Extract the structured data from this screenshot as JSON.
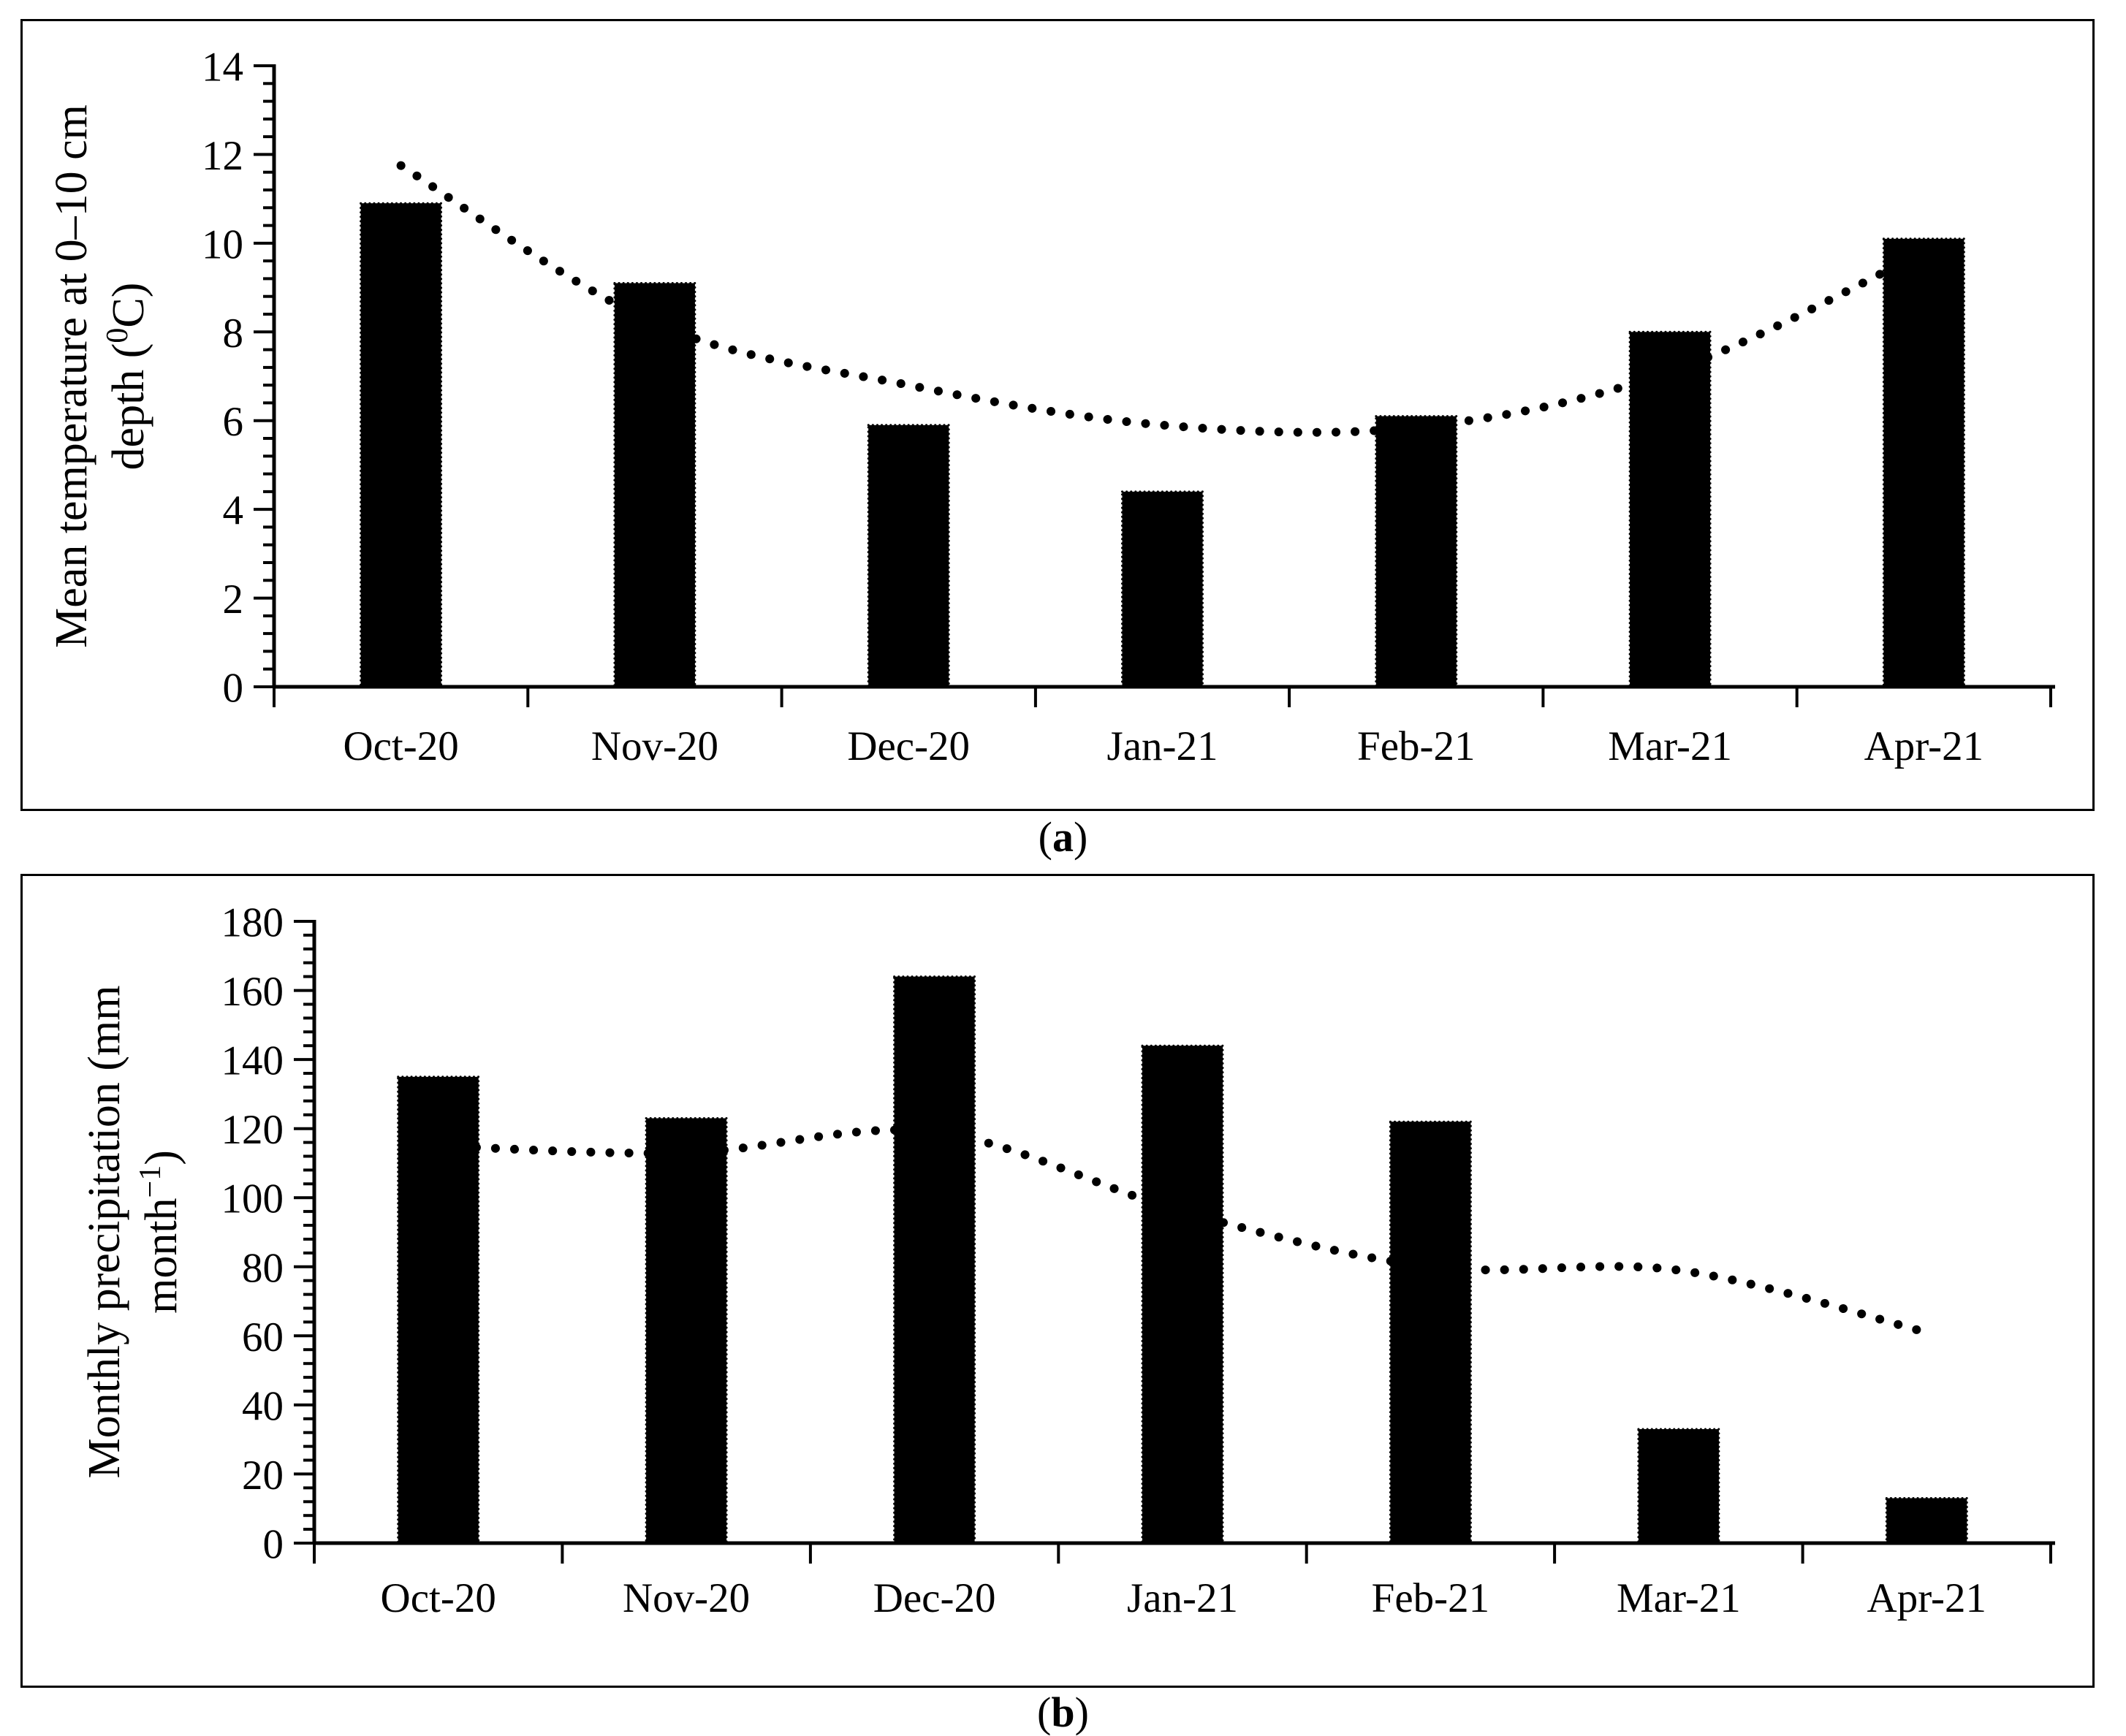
{
  "figure": {
    "background": "#ffffff",
    "ink_color": "#000000"
  },
  "chart_data": [
    {
      "panel": "a",
      "type": "bar",
      "subtype": "bar-with-dotted-line-overlay",
      "categories": [
        "Oct-20",
        "Nov-20",
        "Dec-20",
        "Jan-21",
        "Feb-21",
        "Mar-21",
        "Apr-21"
      ],
      "series": [
        {
          "name": "mean-soil-temperature-bars",
          "type": "bar",
          "values": [
            10.9,
            9.1,
            5.9,
            4.4,
            6.1,
            8.0,
            10.1
          ]
        },
        {
          "name": "dotted-trend-line",
          "type": "line",
          "style": "dotted",
          "values": [
            11.75,
            8.2,
            6.8,
            5.9,
            5.85,
            7.1,
            9.8
          ]
        }
      ],
      "title": "",
      "xlabel": "",
      "ylabel": "Mean temperature at 0–10 cm depth (⁰C)",
      "ylabel_lines": [
        [
          {
            "t": "Mean temperature at 0–10 cm"
          }
        ],
        [
          {
            "t": "depth ("
          },
          {
            "t": "0",
            "sup": true
          },
          {
            "t": "C)"
          }
        ]
      ],
      "ylim": [
        0,
        14
      ],
      "ytick_major": 2,
      "ytick_minor": 0.4,
      "ytick_labels": [
        "0",
        "2",
        "4",
        "6",
        "8",
        "10",
        "12",
        "14"
      ],
      "grid": false,
      "legend": "none",
      "bar_color": "#000000",
      "line_color": "#000000",
      "caption_prefix": "(",
      "caption_letter": "a",
      "caption_suffix": ")"
    },
    {
      "panel": "b",
      "type": "bar",
      "subtype": "bar-with-dotted-line-overlay",
      "categories": [
        "Oct-20",
        "Nov-20",
        "Dec-20",
        "Jan-21",
        "Feb-21",
        "Mar-21",
        "Apr-21"
      ],
      "series": [
        {
          "name": "monthly-precipitation-bars",
          "type": "bar",
          "values": [
            135,
            123,
            164,
            144,
            122,
            33,
            13
          ]
        },
        {
          "name": "dotted-trend-line",
          "type": "line",
          "style": "dotted",
          "values": [
            115,
            113,
            119,
            96,
            80,
            79,
            61
          ]
        }
      ],
      "title": "",
      "xlabel": "",
      "ylabel": "Monthly precipitation (mm month⁻¹)",
      "ylabel_lines": [
        [
          {
            "t": "Monthly precipitation (mm"
          }
        ],
        [
          {
            "t": "month"
          },
          {
            "t": "−1",
            "sup": true
          },
          {
            "t": ")"
          }
        ]
      ],
      "ylim": [
        0,
        180
      ],
      "ytick_major": 20,
      "ytick_minor": 4,
      "ytick_labels": [
        "0",
        "20",
        "40",
        "60",
        "80",
        "100",
        "120",
        "140",
        "160",
        "180"
      ],
      "grid": false,
      "legend": "none",
      "bar_color": "#000000",
      "line_color": "#000000",
      "caption_prefix": "(",
      "caption_letter": "b",
      "caption_suffix": ")"
    }
  ]
}
